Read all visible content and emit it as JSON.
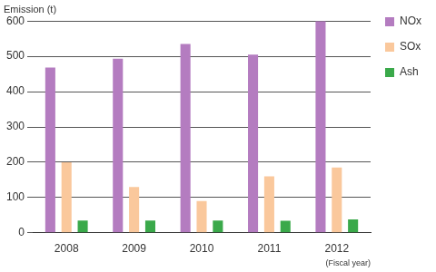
{
  "chart_data": {
    "type": "bar",
    "y_label": "Emission (t)",
    "x_label": "(Fiscal year)",
    "categories": [
      "2008",
      "2009",
      "2010",
      "2011",
      "2012"
    ],
    "series": [
      {
        "name": "NOx",
        "color": "#b47cc0",
        "values": [
          468,
          493,
          535,
          505,
          600
        ]
      },
      {
        "name": "SOx",
        "color": "#fac89c",
        "values": [
          200,
          130,
          90,
          160,
          185
        ]
      },
      {
        "name": "Ash",
        "color": "#3aa94a",
        "values": [
          35,
          35,
          35,
          34,
          38
        ]
      }
    ],
    "ylim": [
      0,
      600
    ],
    "yticks": [
      0,
      100,
      200,
      300,
      400,
      500,
      600
    ],
    "grid": true,
    "legend": "right"
  }
}
